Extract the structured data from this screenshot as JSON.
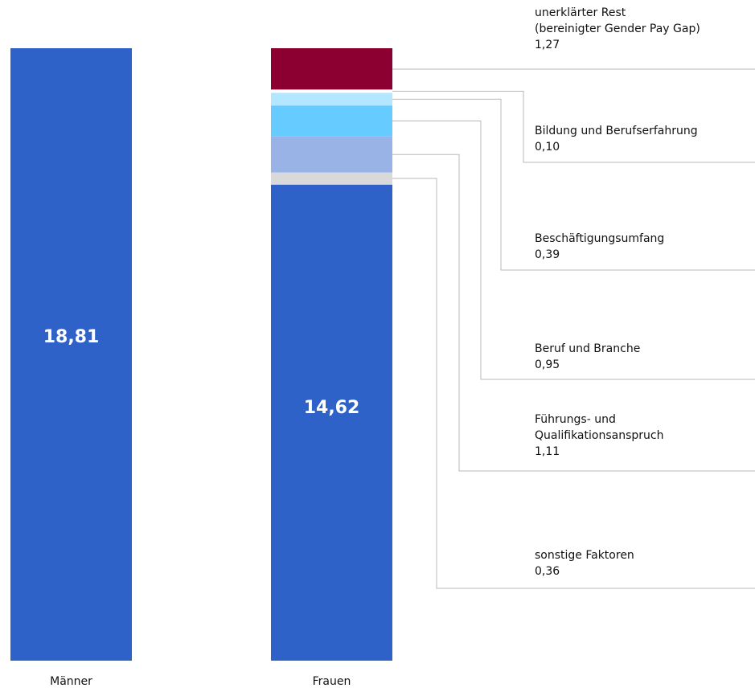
{
  "chart_data": {
    "type": "bar",
    "categories": [
      "Männer",
      "Frauen"
    ],
    "totals": [
      18.81,
      14.62
    ],
    "total_labels": [
      "18,81",
      "14,62"
    ],
    "gap_components": [
      {
        "name": "unerklärter Rest\n(bereinigter Gender Pay Gap)",
        "value": 1.27,
        "value_label": "1,27",
        "color": "#8b0030"
      },
      {
        "name": "Bildung und Berufserfahrung",
        "value": 0.1,
        "value_label": "0,10",
        "color": "#ffffff"
      },
      {
        "name": "Beschäftigungsumfang",
        "value": 0.39,
        "value_label": "0,39",
        "color": "#b3e6ff"
      },
      {
        "name": "Beruf und Branche",
        "value": 0.95,
        "value_label": "0,95",
        "color": "#66ccff"
      },
      {
        "name": "Führungs- und\nQualifikationsanspruch",
        "value": 1.11,
        "value_label": "1,11",
        "color": "#99b3e6"
      },
      {
        "name": "sonstige Faktoren",
        "value": 0.36,
        "value_label": "0,36",
        "color": "#d9d9d9"
      }
    ],
    "bar_color": "#2f62c8",
    "grid": false
  }
}
